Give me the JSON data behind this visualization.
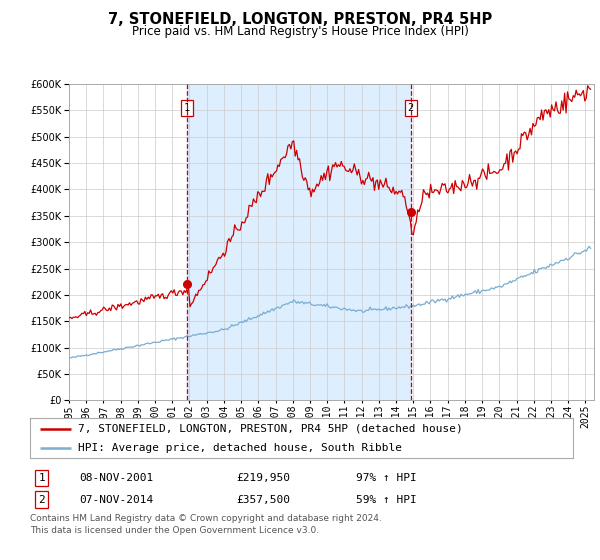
{
  "title": "7, STONEFIELD, LONGTON, PRESTON, PR4 5HP",
  "subtitle": "Price paid vs. HM Land Registry's House Price Index (HPI)",
  "ylim": [
    0,
    600000
  ],
  "yticks": [
    0,
    50000,
    100000,
    150000,
    200000,
    250000,
    300000,
    350000,
    400000,
    450000,
    500000,
    550000,
    600000
  ],
  "xlim_start": 1995.0,
  "xlim_end": 2025.5,
  "xtick_years": [
    1995,
    1996,
    1997,
    1998,
    1999,
    2000,
    2001,
    2002,
    2003,
    2004,
    2005,
    2006,
    2007,
    2008,
    2009,
    2010,
    2011,
    2012,
    2013,
    2014,
    2015,
    2016,
    2017,
    2018,
    2019,
    2020,
    2021,
    2022,
    2023,
    2024,
    2025
  ],
  "sale1_x": 2001.86,
  "sale1_y": 219950,
  "sale2_x": 2014.85,
  "sale2_y": 357500,
  "shaded_region_color": "#ddeeff",
  "red_line_color": "#cc0000",
  "blue_line_color": "#7aadcf",
  "dashed_line_color": "#cc0000",
  "background_color": "#ffffff",
  "grid_color": "#cccccc",
  "legend_label_red": "7, STONEFIELD, LONGTON, PRESTON, PR4 5HP (detached house)",
  "legend_label_blue": "HPI: Average price, detached house, South Ribble",
  "table_row1": [
    "1",
    "08-NOV-2001",
    "£219,950",
    "97% ↑ HPI"
  ],
  "table_row2": [
    "2",
    "07-NOV-2014",
    "£357,500",
    "59% ↑ HPI"
  ],
  "footnote": "Contains HM Land Registry data © Crown copyright and database right 2024.\nThis data is licensed under the Open Government Licence v3.0.",
  "title_fontsize": 10.5,
  "subtitle_fontsize": 8.5,
  "tick_fontsize": 7,
  "legend_fontsize": 8,
  "table_fontsize": 8,
  "footnote_fontsize": 6.5
}
